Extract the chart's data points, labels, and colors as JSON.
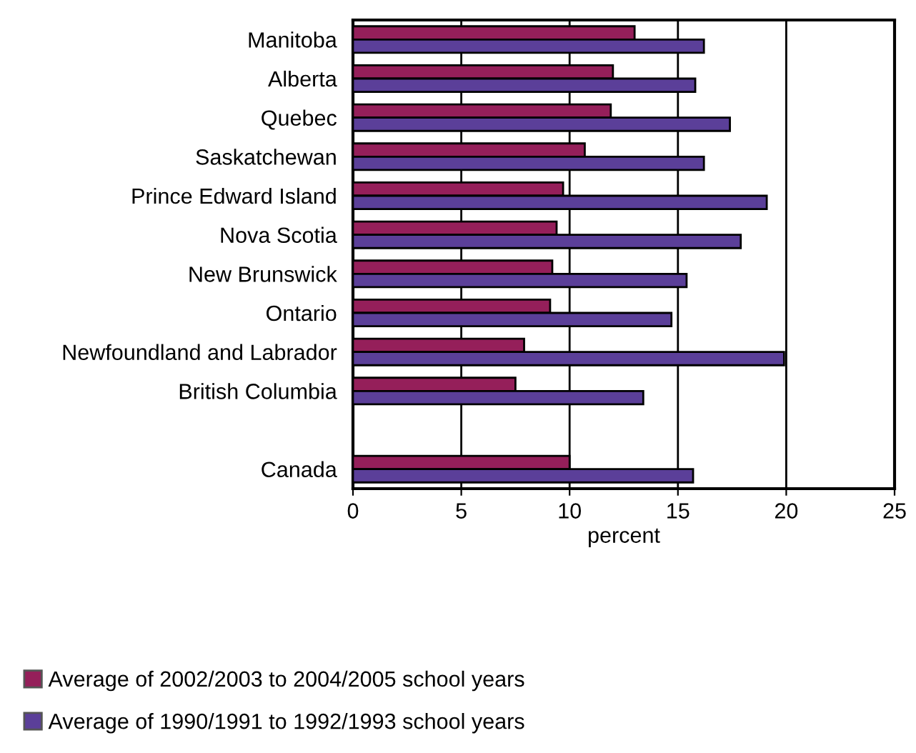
{
  "chart_data": {
    "type": "bar",
    "orientation": "horizontal",
    "xlabel": "percent",
    "categories": [
      "Manitoba",
      "Alberta",
      "Quebec",
      "Saskatchewan",
      "Prince Edward Island",
      "Nova Scotia",
      "New Brunswick",
      "Ontario",
      "Newfoundland and Labrador",
      "British Columbia",
      null,
      "Canada"
    ],
    "series": [
      {
        "name": "Average of 2002/2003 to 2004/2005 school years",
        "color": "#951f5a",
        "values": [
          13.0,
          12.0,
          11.9,
          10.7,
          9.7,
          9.4,
          9.2,
          9.1,
          7.9,
          7.5,
          null,
          10.0
        ]
      },
      {
        "name": "Average of 1990/1991 to 1992/1993 school years",
        "color": "#5b3f99",
        "values": [
          16.2,
          15.8,
          17.4,
          16.2,
          19.1,
          17.9,
          15.4,
          14.7,
          19.9,
          13.4,
          null,
          15.7
        ]
      }
    ],
    "xlim": [
      0,
      25
    ],
    "xticks": [
      0,
      5,
      10,
      15,
      20,
      25
    ],
    "grid": "x",
    "legend": "bottom left"
  }
}
